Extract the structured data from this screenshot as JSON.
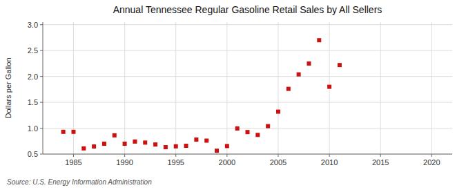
{
  "chart_data": {
    "type": "scatter",
    "title": "Annual Tennessee Regular Gasoline Retail Sales by All Sellers",
    "ylabel": "Dollars per Gallon",
    "annotation": "Source: U.S. Energy Information Administration",
    "x": [
      1984,
      1985,
      1986,
      1987,
      1988,
      1989,
      1990,
      1991,
      1992,
      1993,
      1994,
      1995,
      1996,
      1997,
      1998,
      1999,
      2000,
      2001,
      2002,
      2003,
      2004,
      2005,
      2006,
      2007,
      2008,
      2009,
      2010,
      2011
    ],
    "values": [
      0.93,
      0.93,
      0.61,
      0.647,
      0.7,
      0.862,
      0.7,
      0.742,
      0.722,
      0.685,
      0.633,
      0.65,
      0.66,
      0.78,
      0.76,
      0.565,
      0.655,
      0.995,
      0.925,
      0.87,
      1.04,
      1.32,
      1.76,
      2.04,
      2.25,
      2.7,
      1.8,
      2.22
    ],
    "color": "#cc1111",
    "marker": "square",
    "xlim": [
      1982,
      2022
    ],
    "ylim": [
      0.5,
      3.05
    ],
    "xticks": [
      1985,
      1990,
      1995,
      2000,
      2005,
      2010,
      2015,
      2020
    ],
    "yticks": [
      0.5,
      {
        "value": 1.0,
        "label": "1.0"
      },
      1.5,
      {
        "value": 2.0,
        "label": "2.0"
      },
      2.5,
      {
        "value": 3.0,
        "label": "3.0"
      }
    ],
    "grid": true
  }
}
